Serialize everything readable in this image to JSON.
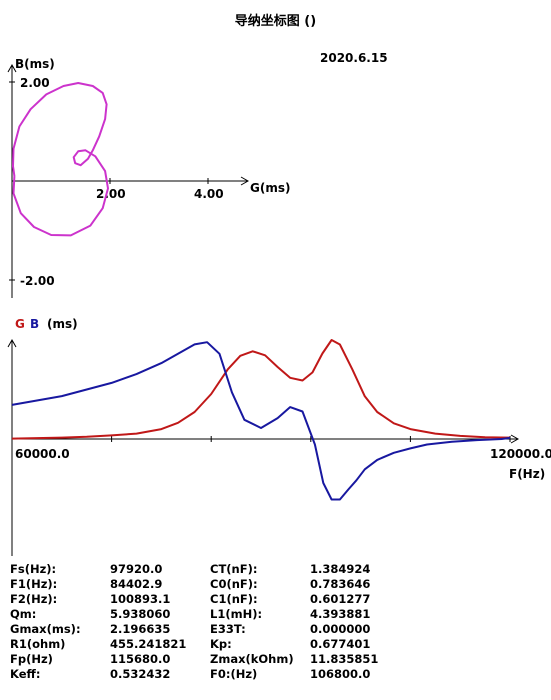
{
  "title": "导纳坐标图 ()",
  "date": "2020.6.15",
  "colors": {
    "admittance_curve": "#cc33cc",
    "g_series": "#c01818",
    "b_series": "#1818a0",
    "axis": "#000000"
  },
  "chart_data": [
    {
      "type": "line",
      "title": "",
      "xlabel": "G(ms)",
      "ylabel": "B(ms)",
      "xlim": [
        0,
        4.8
      ],
      "ylim": [
        -2.3,
        2.3
      ],
      "x_ticks": [
        "2.00",
        "4.00"
      ],
      "y_ticks": [
        "2.00",
        "-2.00"
      ],
      "series": [
        {
          "points": [
            [
              0.05,
              0.1
            ],
            [
              0.03,
              -0.25
            ],
            [
              0.18,
              -0.65
            ],
            [
              0.45,
              -0.93
            ],
            [
              0.8,
              -1.09
            ],
            [
              1.2,
              -1.1
            ],
            [
              1.6,
              -0.9
            ],
            [
              1.85,
              -0.55
            ],
            [
              1.96,
              -0.15
            ],
            [
              1.9,
              0.2
            ],
            [
              1.7,
              0.5
            ],
            [
              1.5,
              0.62
            ],
            [
              1.35,
              0.6
            ],
            [
              1.26,
              0.48
            ],
            [
              1.29,
              0.36
            ],
            [
              1.4,
              0.32
            ],
            [
              1.55,
              0.45
            ],
            [
              1.65,
              0.62
            ],
            [
              1.78,
              0.9
            ],
            [
              1.9,
              1.25
            ],
            [
              1.93,
              1.55
            ],
            [
              1.85,
              1.78
            ],
            [
              1.65,
              1.92
            ],
            [
              1.35,
              1.98
            ],
            [
              1.05,
              1.92
            ],
            [
              0.7,
              1.75
            ],
            [
              0.38,
              1.45
            ],
            [
              0.15,
              1.1
            ],
            [
              0.03,
              0.65
            ],
            [
              0.02,
              0.3
            ],
            [
              0.05,
              0.1
            ]
          ]
        }
      ]
    },
    {
      "type": "line",
      "title": "",
      "legend": [
        "G",
        "B"
      ],
      "unit_label": "(ms)",
      "xlabel": "F(Hz)",
      "x_ticks": [
        "60000.0",
        "120000.0"
      ],
      "xlim": [
        60000,
        120000
      ],
      "series": [
        {
          "name": "G",
          "x": [
            60000,
            63000,
            66000,
            69000,
            72000,
            75000,
            78000,
            80000,
            82000,
            84000,
            86000,
            87500,
            89000,
            90500,
            92000,
            93500,
            95000,
            96200,
            97400,
            98500,
            99500,
            101000,
            102500,
            104000,
            106000,
            108000,
            111000,
            114000,
            117000,
            120000
          ],
          "values": [
            0.01,
            0.02,
            0.03,
            0.05,
            0.08,
            0.12,
            0.22,
            0.36,
            0.6,
            1.0,
            1.55,
            1.85,
            1.95,
            1.86,
            1.6,
            1.36,
            1.3,
            1.48,
            1.9,
            2.2,
            2.1,
            1.55,
            0.95,
            0.6,
            0.35,
            0.22,
            0.12,
            0.07,
            0.04,
            0.03
          ]
        },
        {
          "name": "B",
          "x": [
            60000,
            63000,
            66000,
            69000,
            72000,
            75000,
            78000,
            80000,
            82000,
            83500,
            85000,
            86500,
            88000,
            90000,
            92000,
            93500,
            95000,
            96500,
            97500,
            98500,
            99500,
            100500,
            101500,
            102500,
            104000,
            106000,
            108000,
            110000,
            113000,
            116000,
            119000,
            120000
          ],
          "values": [
            0.62,
            0.7,
            0.78,
            0.9,
            1.02,
            1.18,
            1.38,
            1.55,
            1.72,
            1.76,
            1.55,
            0.85,
            0.35,
            0.2,
            0.38,
            0.58,
            0.5,
            -0.1,
            -0.8,
            -1.1,
            -1.1,
            -0.92,
            -0.75,
            -0.55,
            -0.38,
            -0.25,
            -0.17,
            -0.1,
            -0.05,
            -0.02,
            0.0,
            0.02
          ]
        }
      ]
    }
  ],
  "params_left": [
    {
      "label": "Fs(Hz):",
      "value": "97920.0"
    },
    {
      "label": "F1(Hz):",
      "value": "84402.9"
    },
    {
      "label": "F2(Hz):",
      "value": "100893.1"
    },
    {
      "label": "Qm:",
      "value": "5.938060"
    },
    {
      "label": "Gmax(ms):",
      "value": "2.196635"
    },
    {
      "label": "R1(ohm)",
      "value": "455.241821"
    },
    {
      "label": "Fp(Hz)",
      "value": "115680.0"
    },
    {
      "label": "Keff:",
      "value": "0.532432"
    }
  ],
  "params_right": [
    {
      "label": "CT(nF):",
      "value": "1.384924"
    },
    {
      "label": "C0(nF):",
      "value": "0.783646"
    },
    {
      "label": "C1(nF):",
      "value": "0.601277"
    },
    {
      "label": "L1(mH):",
      "value": "4.393881"
    },
    {
      "label": "E33T:",
      "value": "0.000000"
    },
    {
      "label": "Kp:",
      "value": "0.677401"
    },
    {
      "label": "Zmax(kOhm)",
      "value": "11.835851"
    },
    {
      "label": "F0:(Hz)",
      "value": "106800.0"
    }
  ]
}
